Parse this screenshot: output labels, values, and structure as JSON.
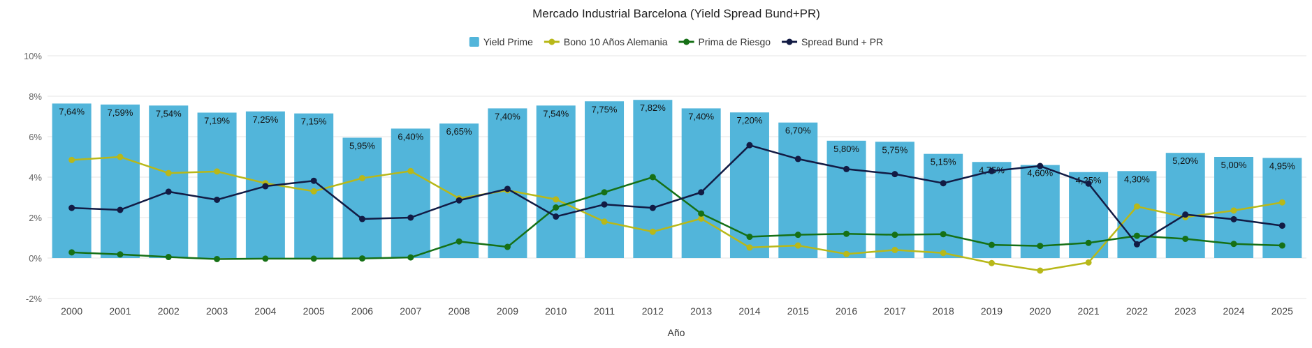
{
  "chart_data": {
    "type": "bar",
    "title": "Mercado Industrial Barcelona (Yield Spread Bund+PR)",
    "xlabel": "Año",
    "ylabel": "",
    "ylim": [
      -2,
      10
    ],
    "yticks": [
      "-2%",
      "0%",
      "2%",
      "4%",
      "6%",
      "8%",
      "10%"
    ],
    "ytick_values": [
      -2,
      0,
      2,
      4,
      6,
      8,
      10
    ],
    "grid": true,
    "legend_position": "top-center",
    "categories": [
      "2000",
      "2001",
      "2002",
      "2003",
      "2004",
      "2005",
      "2006",
      "2007",
      "2008",
      "2009",
      "2010",
      "2011",
      "2012",
      "2013",
      "2014",
      "2015",
      "2016",
      "2017",
      "2018",
      "2019",
      "2020",
      "2021",
      "2022",
      "2023",
      "2024",
      "2025"
    ],
    "series": [
      {
        "name": "Yield Prime",
        "kind": "bar",
        "color": "#52b5da",
        "values": [
          7.64,
          7.59,
          7.54,
          7.19,
          7.25,
          7.15,
          5.95,
          6.4,
          6.65,
          7.4,
          7.54,
          7.75,
          7.82,
          7.4,
          7.2,
          6.7,
          5.8,
          5.75,
          5.15,
          4.75,
          4.6,
          4.25,
          4.3,
          5.2,
          5.0,
          4.95
        ],
        "labels": [
          "7,64%",
          "7,59%",
          "7,54%",
          "7,19%",
          "7,25%",
          "7,15%",
          "5,95%",
          "6,40%",
          "6,65%",
          "7,40%",
          "7,54%",
          "7,75%",
          "7,82%",
          "7,40%",
          "7,20%",
          "6,70%",
          "5,80%",
          "5,75%",
          "5,15%",
          "4,75%",
          "4,60%",
          "4,25%",
          "4,30%",
          "5,20%",
          "5,00%",
          "4,95%"
        ]
      },
      {
        "name": "Bono 10 Años Alemania",
        "kind": "line",
        "color": "#b8b819",
        "values": [
          4.85,
          5.0,
          4.2,
          4.28,
          3.7,
          3.3,
          3.95,
          4.3,
          2.95,
          3.35,
          2.9,
          1.8,
          1.3,
          1.95,
          0.52,
          0.62,
          0.2,
          0.4,
          0.25,
          -0.25,
          -0.62,
          -0.22,
          2.55,
          2.02,
          2.35,
          2.75
        ]
      },
      {
        "name": "Prima de Riesgo",
        "kind": "line",
        "color": "#167016",
        "values": [
          0.28,
          0.18,
          0.05,
          -0.05,
          -0.03,
          -0.03,
          -0.02,
          0.03,
          0.82,
          0.55,
          2.5,
          3.25,
          4.0,
          2.2,
          1.05,
          1.15,
          1.2,
          1.15,
          1.18,
          0.65,
          0.6,
          0.75,
          1.1,
          0.95,
          0.7,
          0.62
        ]
      },
      {
        "name": "Spread Bund + PR",
        "kind": "line",
        "color": "#121b44",
        "values": [
          2.48,
          2.38,
          3.28,
          2.88,
          3.55,
          3.82,
          1.93,
          2.0,
          2.85,
          3.42,
          2.05,
          2.65,
          2.48,
          3.25,
          5.58,
          4.9,
          4.4,
          4.15,
          3.7,
          4.3,
          4.55,
          3.68,
          0.68,
          2.15,
          1.92,
          1.6
        ]
      }
    ]
  }
}
